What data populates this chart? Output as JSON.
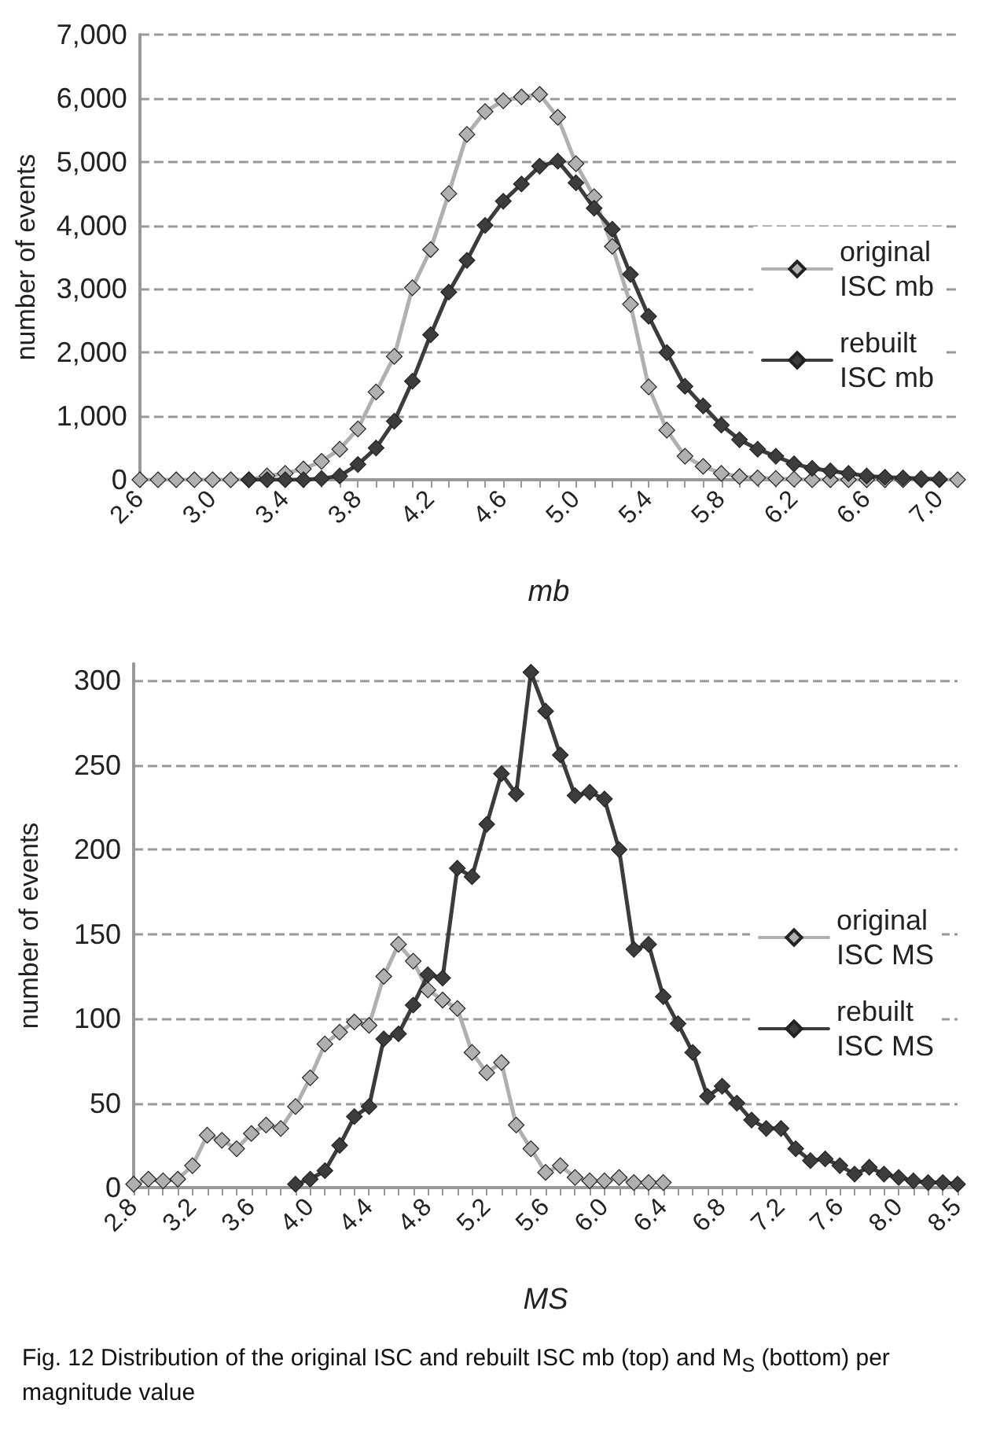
{
  "chart_data": [
    {
      "type": "line",
      "xlabel": "mb",
      "ylabel": "number of events",
      "categories": [
        "2.6",
        null,
        null,
        null,
        "3.0",
        null,
        null,
        null,
        "3.4",
        null,
        null,
        null,
        "3.8",
        null,
        null,
        null,
        "4.2",
        null,
        null,
        null,
        "4.6",
        null,
        null,
        null,
        "5.0",
        null,
        null,
        null,
        "5.4",
        null,
        null,
        null,
        "5.8",
        null,
        null,
        null,
        "6.2",
        null,
        null,
        null,
        "6.6",
        null,
        null,
        null,
        "7.0",
        null
      ],
      "series": [
        {
          "name": "original ISC mb",
          "color": "#b0b0b0",
          "values": [
            0,
            0,
            0,
            0,
            0,
            0,
            0,
            60,
            100,
            170,
            290,
            480,
            800,
            1380,
            1940,
            3020,
            3620,
            4500,
            5430,
            5790,
            5960,
            6020,
            6060,
            5700,
            4970,
            4450,
            3670,
            2760,
            1460,
            780,
            370,
            210,
            100,
            50,
            30,
            20,
            10,
            0,
            0,
            0,
            0,
            0,
            0,
            0,
            0,
            0
          ]
        },
        {
          "name": "rebuilt ISC mb",
          "color": "#3c3c3c",
          "values": [
            null,
            null,
            null,
            null,
            null,
            null,
            0,
            0,
            0,
            0,
            20,
            60,
            240,
            500,
            920,
            1550,
            2280,
            2950,
            3450,
            4000,
            4380,
            4650,
            4930,
            5010,
            4670,
            4270,
            3940,
            3230,
            2570,
            2000,
            1470,
            1160,
            860,
            630,
            480,
            370,
            250,
            180,
            140,
            100,
            60,
            40,
            30,
            20,
            10,
            null
          ]
        }
      ],
      "ylim": [
        0,
        7000
      ],
      "yticks": [
        0,
        {
          "value": 1000,
          "label": "1,000"
        },
        {
          "value": 2000,
          "label": "2,000"
        },
        {
          "value": 3000,
          "label": "3,000"
        },
        {
          "value": 4000,
          "label": "4,000"
        },
        {
          "value": 5000,
          "label": "5,000"
        },
        {
          "value": 6000,
          "label": "6,000"
        },
        {
          "value": 7000,
          "label": "7,000"
        }
      ],
      "grid": "y",
      "legend": "right",
      "marker": "diamond",
      "line_style": "solid"
    },
    {
      "type": "line",
      "xlabel": "MS",
      "ylabel": "number of events",
      "categories": [
        "2.8",
        null,
        null,
        null,
        "3.2",
        null,
        null,
        null,
        "3.6",
        null,
        null,
        null,
        "4.0",
        null,
        null,
        null,
        "4.4",
        null,
        null,
        null,
        "4.8",
        null,
        null,
        null,
        "5.2",
        null,
        null,
        null,
        "5.6",
        null,
        null,
        null,
        "6.0",
        null,
        null,
        null,
        "6.4",
        null,
        null,
        null,
        "6.8",
        null,
        null,
        null,
        "7.2",
        null,
        null,
        null,
        "7.6",
        null,
        null,
        null,
        "8.0",
        null,
        null,
        null,
        "8.5"
      ],
      "series": [
        {
          "name": "original ISC MS",
          "color": "#b0b0b0",
          "values": [
            2,
            5,
            4,
            5,
            13,
            31,
            28,
            23,
            32,
            37,
            35,
            48,
            65,
            85,
            92,
            98,
            96,
            125,
            144,
            134,
            117,
            111,
            106,
            80,
            68,
            74,
            37,
            23,
            9,
            13,
            6,
            4,
            4,
            6,
            3,
            3,
            3,
            null,
            null,
            null,
            null,
            null,
            null,
            null,
            null,
            null,
            null,
            null,
            null,
            null,
            null,
            null,
            null,
            null,
            null,
            null,
            null
          ]
        },
        {
          "name": "rebuilt ISC MS",
          "color": "#3c3c3c",
          "values": [
            null,
            null,
            null,
            null,
            null,
            null,
            null,
            null,
            null,
            null,
            null,
            2,
            5,
            10,
            25,
            42,
            48,
            88,
            91,
            108,
            126,
            124,
            189,
            184,
            215,
            245,
            233,
            305,
            282,
            256,
            232,
            234,
            230,
            200,
            141,
            144,
            113,
            97,
            80,
            54,
            60,
            50,
            40,
            35,
            35,
            23,
            16,
            17,
            13,
            8,
            12,
            8,
            6,
            4,
            3,
            3,
            2
          ]
        }
      ],
      "ylim": [
        0,
        310
      ],
      "yticks": [
        0,
        50,
        100,
        150,
        200,
        250,
        300
      ],
      "grid": "y",
      "legend": "right",
      "marker": "diamond",
      "line_style": "solid",
      "annotations": [
        "Fig. 12  Distribution of the original ISC and rebuilt ISC mb (top) and M$_{S}$ (bottom) per magnitude value"
      ]
    }
  ]
}
